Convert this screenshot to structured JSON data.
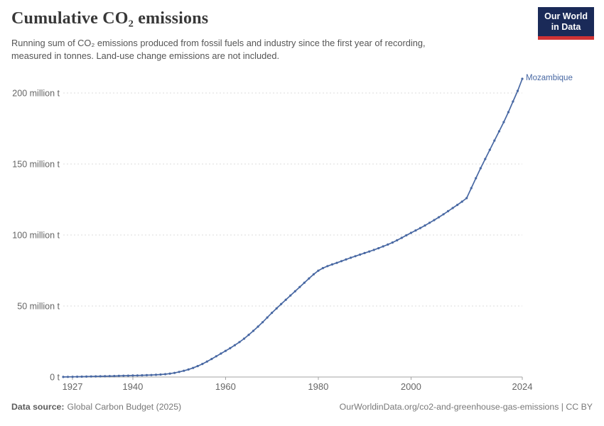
{
  "header": {
    "title": "Cumulative CO₂ emissions",
    "subtitle_lines": [
      "Running sum of CO₂ emissions produced from fossil fuels and industry since the first year of recording,",
      "measured in tonnes. Land-use change emissions are not included."
    ]
  },
  "logo": {
    "line1": "Our World",
    "line2": "in Data",
    "bg_color": "#1A2A58",
    "bar_color": "#D03335"
  },
  "footer": {
    "source_label": "Data source:",
    "source_value": "Global Carbon Budget (2025)",
    "attribution": "OurWorldinData.org/co2-and-greenhouse-gas-emissions | CC BY"
  },
  "chart_data": {
    "type": "line",
    "title": "Cumulative CO₂ emissions",
    "xlabel": "",
    "ylabel": "",
    "unit": "million tonnes",
    "xlim": [
      1925,
      2024
    ],
    "ylim": [
      0,
      200
    ],
    "grid": true,
    "legend_position": "end-of-line label",
    "y_ticks": [
      {
        "value": 0,
        "label": "0 t"
      },
      {
        "value": 50,
        "label": "50 million t"
      },
      {
        "value": 100,
        "label": "100 million t"
      },
      {
        "value": 150,
        "label": "150 million t"
      },
      {
        "value": 200,
        "label": "200 million t"
      }
    ],
    "x_ticks": [
      1927,
      1940,
      1960,
      1980,
      2000,
      2024
    ],
    "series": [
      {
        "name": "Mozambique",
        "color": "#4868A3",
        "years": [
          1925,
          1926,
          1927,
          1928,
          1929,
          1930,
          1931,
          1932,
          1933,
          1934,
          1935,
          1936,
          1937,
          1938,
          1939,
          1940,
          1941,
          1942,
          1943,
          1944,
          1945,
          1946,
          1947,
          1948,
          1949,
          1950,
          1951,
          1952,
          1953,
          1954,
          1955,
          1956,
          1957,
          1958,
          1959,
          1960,
          1961,
          1962,
          1963,
          1964,
          1965,
          1966,
          1967,
          1968,
          1969,
          1970,
          1971,
          1972,
          1973,
          1974,
          1975,
          1976,
          1977,
          1978,
          1979,
          1980,
          1981,
          1982,
          1983,
          1984,
          1985,
          1986,
          1987,
          1988,
          1989,
          1990,
          1991,
          1992,
          1993,
          1994,
          1995,
          1996,
          1997,
          1998,
          1999,
          2000,
          2001,
          2002,
          2003,
          2004,
          2005,
          2006,
          2007,
          2008,
          2009,
          2010,
          2011,
          2012,
          2013,
          2014,
          2015,
          2016,
          2017,
          2018,
          2019,
          2020,
          2021,
          2022,
          2023,
          2024
        ],
        "values": [
          0.04,
          0.09,
          0.14,
          0.2,
          0.26,
          0.32,
          0.38,
          0.44,
          0.5,
          0.57,
          0.64,
          0.72,
          0.8,
          0.88,
          0.96,
          1.04,
          1.12,
          1.2,
          1.3,
          1.4,
          1.55,
          1.75,
          2,
          2.4,
          2.9,
          3.6,
          4.4,
          5.3,
          6.4,
          7.7,
          9.2,
          10.9,
          12.7,
          14.6,
          16.5,
          18.4,
          20.3,
          22.4,
          24.6,
          27,
          29.7,
          32.5,
          35.5,
          38.6,
          41.9,
          45.2,
          48.3,
          51.4,
          54.4,
          57.4,
          60.4,
          63.4,
          66.4,
          69.4,
          72.3,
          74.9,
          76.7,
          78.1,
          79.3,
          80.4,
          81.6,
          82.8,
          84,
          85.1,
          86.2,
          87.3,
          88.4,
          89.5,
          90.7,
          92,
          93.3,
          94.7,
          96.3,
          98,
          99.8,
          101.5,
          103.2,
          104.9,
          106.7,
          108.6,
          110.5,
          112.5,
          114.6,
          116.8,
          119,
          121.2,
          123.5,
          126,
          133,
          140,
          147,
          153.5,
          160,
          166.5,
          173,
          179.5,
          186.5,
          194,
          201.5,
          210
        ]
      }
    ]
  }
}
